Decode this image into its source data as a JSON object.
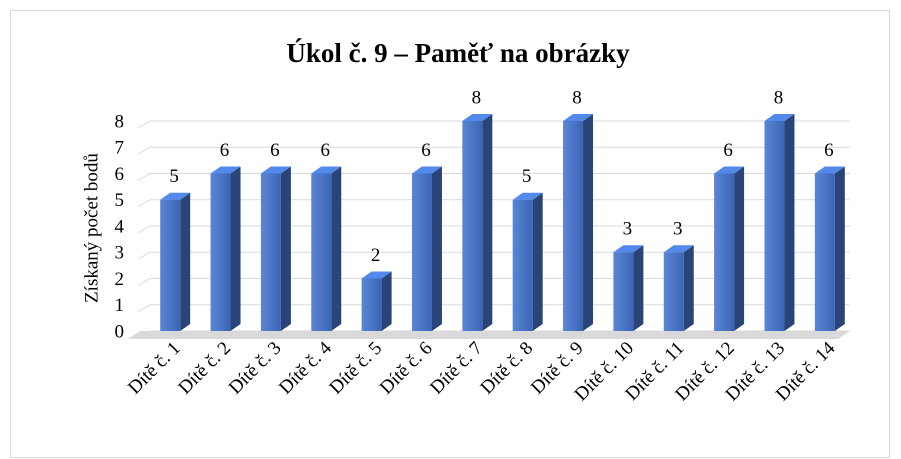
{
  "chart_data": {
    "type": "bar3d",
    "title": "Úkol č. 9 – Paměť na obrázky",
    "y_label": "Získaný počet bodů",
    "categories": [
      "Dítě č. 1",
      "Dítě č. 2",
      "Dítě č. 3",
      "Dítě č. 4",
      "Dítě č. 5",
      "Dítě č. 6",
      "Dítě č. 7",
      "Dítě č. 8",
      "Dítě č. 9",
      "Dítě č. 10",
      "Dítě č. 11",
      "Dítě č. 12",
      "Dítě č. 13",
      "Dítě č. 14"
    ],
    "values": [
      5,
      6,
      6,
      6,
      2,
      6,
      8,
      5,
      8,
      3,
      3,
      6,
      8,
      6
    ],
    "color": "#4472c4",
    "ylim": [
      0,
      8
    ],
    "yticks": [
      0,
      1,
      2,
      3,
      4,
      5,
      6,
      7,
      8
    ],
    "grid": true
  }
}
